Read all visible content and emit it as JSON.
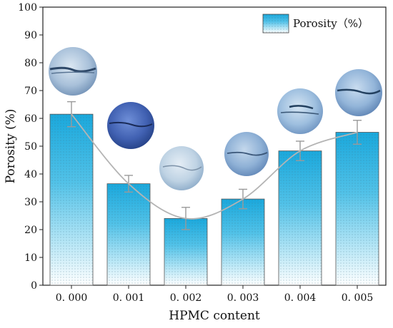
{
  "chart_data": {
    "type": "bar",
    "categories": [
      "0. 000",
      "0. 001",
      "0. 002",
      "0. 003",
      "0. 004",
      "0. 005"
    ],
    "series": [
      {
        "name": "Porosity（%）",
        "values": [
          61.5,
          36.5,
          24.0,
          31.0,
          48.3,
          55.0
        ],
        "errors": [
          4.5,
          3.0,
          4.0,
          3.5,
          3.5,
          4.3
        ]
      }
    ],
    "trend_line": true,
    "xlabel": "HPMC content",
    "ylabel": "Porosity (%)",
    "ylim": [
      0,
      100
    ],
    "yticks": [
      0,
      10,
      20,
      30,
      40,
      50,
      60,
      70,
      80,
      90,
      100
    ],
    "legend_position": "top-right",
    "grid": false,
    "photo_insets": [
      "sample-photo-0.000",
      "sample-photo-0.001",
      "sample-photo-0.002",
      "sample-photo-0.003",
      "sample-photo-0.004",
      "sample-photo-0.005"
    ]
  },
  "colors": {
    "bar_top": "#1aa8dc",
    "bar_mid": "#7cd3ef",
    "bar_bottom": "#ffffff",
    "error_bar": "#9a9a9a",
    "trend_line": "#b4b4b4",
    "axis": "#222222"
  }
}
